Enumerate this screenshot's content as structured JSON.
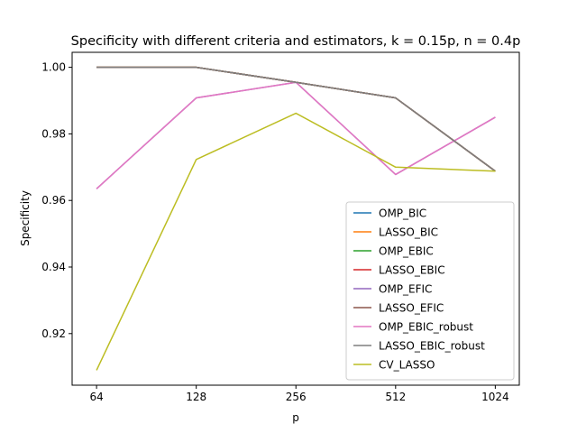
{
  "chart_data": {
    "type": "line",
    "title": "Specificity with different criteria and estimators, k = 0.15p, n = 0.4p",
    "xlabel": "p",
    "ylabel": "Specificity",
    "x_scale": "log2",
    "categories": [
      "64",
      "128",
      "256",
      "512",
      "1024"
    ],
    "x": [
      64,
      128,
      256,
      512,
      1024
    ],
    "xlim": [
      54,
      1210
    ],
    "ylim": [
      0.9045,
      1.0045
    ],
    "yticks": [
      0.92,
      0.94,
      0.96,
      0.98,
      1.0
    ],
    "ytick_labels": [
      "0.92",
      "0.94",
      "0.96",
      "0.98",
      "1.00"
    ],
    "grid": false,
    "legend_position": "lower right",
    "series": [
      {
        "name": "OMP_BIC",
        "color": "#1f77b4",
        "values": [
          1.0,
          1.0,
          0.9955,
          0.9908,
          0.9688
        ]
      },
      {
        "name": "LASSO_BIC",
        "color": "#ff7f0e",
        "values": [
          1.0,
          1.0,
          0.9955,
          0.9908,
          0.9688
        ]
      },
      {
        "name": "OMP_EBIC",
        "color": "#2ca02c",
        "values": [
          1.0,
          1.0,
          0.9955,
          0.9908,
          0.9688
        ]
      },
      {
        "name": "LASSO_EBIC",
        "color": "#d62728",
        "values": [
          1.0,
          1.0,
          0.9955,
          0.9908,
          0.9688
        ]
      },
      {
        "name": "OMP_EFIC",
        "color": "#9467bd",
        "values": [
          0.9635,
          0.9908,
          0.9955,
          0.9678,
          0.985
        ]
      },
      {
        "name": "LASSO_EFIC",
        "color": "#8c564b",
        "values": [
          1.0,
          1.0,
          0.9955,
          0.9908,
          0.9688
        ]
      },
      {
        "name": "OMP_EBIC_robust",
        "color": "#e377c2",
        "values": [
          0.9635,
          0.9908,
          0.9955,
          0.9678,
          0.985
        ]
      },
      {
        "name": "LASSO_EBIC_robust",
        "color": "#7f7f7f",
        "values": [
          1.0,
          1.0,
          0.9955,
          0.9908,
          0.9688
        ]
      },
      {
        "name": "CV_LASSO",
        "color": "#bcbd22",
        "values": [
          0.909,
          0.9723,
          0.9862,
          0.97,
          0.9688
        ]
      }
    ]
  }
}
